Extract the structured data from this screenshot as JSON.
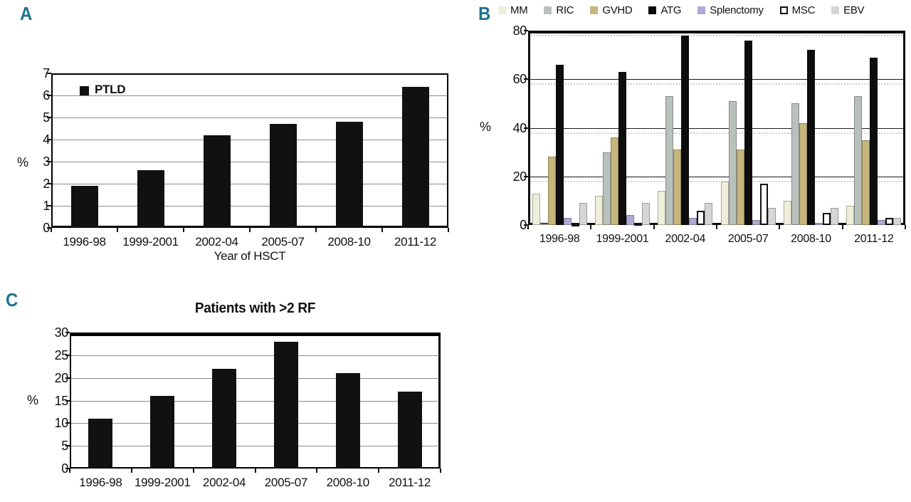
{
  "figure": {
    "panel_labels": {
      "a": "A",
      "b": "B",
      "c": "C"
    }
  },
  "chart_data": [
    {
      "panel": "A",
      "type": "bar",
      "title": "",
      "legend": [
        {
          "label": "PTLD",
          "color": "#111111"
        }
      ],
      "legend_position": "inside-top-left",
      "categories": [
        "1996-98",
        "1999-2001",
        "2002-04",
        "2005-07",
        "2008-10",
        "2011-12"
      ],
      "values": [
        1.9,
        2.6,
        4.2,
        4.7,
        4.8,
        6.4
      ],
      "bar_color": "#111111",
      "xlabel": "Year of HSCT",
      "ylabel": "%",
      "ylim": [
        0,
        7
      ],
      "ytick_step": 1,
      "grid": true
    },
    {
      "panel": "B",
      "type": "grouped-bar",
      "title": "",
      "legend_position": "top",
      "categories": [
        "1996-98",
        "1999-2001",
        "2002-04",
        "2005-07",
        "2008-10",
        "2011-12"
      ],
      "series": [
        {
          "name": "MM",
          "color": "#efeedb",
          "values": [
            13,
            12,
            14,
            18,
            10,
            8
          ]
        },
        {
          "name": "RIC",
          "color": "#b9c1bd",
          "values": [
            0.5,
            30,
            53,
            51,
            50,
            53
          ]
        },
        {
          "name": "GVHD",
          "color": "#c6b67c",
          "values": [
            28,
            36,
            31,
            31,
            42,
            35
          ]
        },
        {
          "name": "ATG",
          "color": "#0d0d0d",
          "values": [
            66,
            63,
            78,
            76,
            72,
            69
          ]
        },
        {
          "name": "Splenctomy",
          "color": "#b1a8d5",
          "values": [
            3,
            4,
            3,
            2,
            1,
            2
          ]
        },
        {
          "name": "MSC",
          "color": "#ffffff",
          "border": "#111111",
          "values": [
            0.5,
            1,
            6,
            17,
            5,
            3
          ]
        },
        {
          "name": "EBV",
          "color": "#d6d6d6",
          "values": [
            9,
            9,
            9,
            7,
            7,
            3
          ]
        }
      ],
      "ylabel": "%",
      "ylim": [
        0,
        80
      ],
      "ytick_step": 20,
      "grid": true,
      "minor_dotted_grid": true
    },
    {
      "panel": "C",
      "type": "bar",
      "title": "Patients with >2 RF",
      "categories": [
        "1996-98",
        "1999-2001",
        "2002-04",
        "2005-07",
        "2008-10",
        "2011-12"
      ],
      "values": [
        11,
        16,
        22,
        28,
        21,
        17
      ],
      "bar_color": "#111111",
      "xlabel": "",
      "ylabel": "%",
      "ylim": [
        0,
        30
      ],
      "ytick_step": 5,
      "grid": true
    }
  ]
}
